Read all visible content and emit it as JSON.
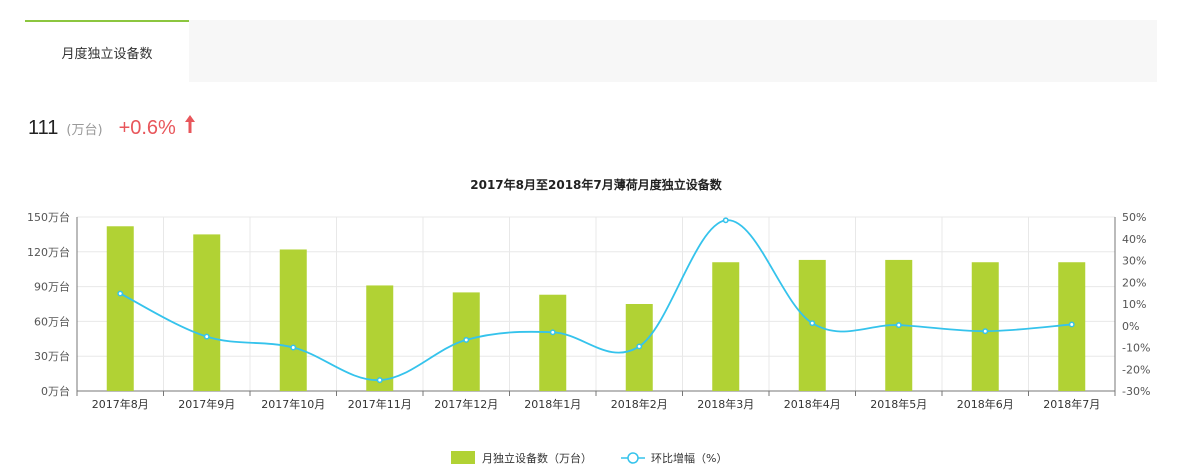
{
  "tabs": [
    {
      "label": "月度独立设备数"
    }
  ],
  "summary": {
    "value": "111",
    "unit": "(万台)",
    "change": "+0.6%"
  },
  "colors": {
    "bar": "#b1d234",
    "line": "#35c3ec",
    "tab_accent": "#8cc63f",
    "change": "#e8565b"
  },
  "chart_data": {
    "type": "bar",
    "title": "2017年8月至2018年7月薄荷月度独立设备数",
    "categories": [
      "2017年8月",
      "2017年9月",
      "2017年10月",
      "2017年11月",
      "2017年12月",
      "2018年1月",
      "2018年2月",
      "2018年3月",
      "2018年4月",
      "2018年5月",
      "2018年6月",
      "2018年7月"
    ],
    "y_left_ticks": [
      "0万台",
      "30万台",
      "60万台",
      "90万台",
      "120万台",
      "150万台"
    ],
    "y_right_ticks": [
      "-30%",
      "-20%",
      "-10%",
      "0%",
      "10%",
      "20%",
      "30%",
      "40%",
      "50%"
    ],
    "ylim_left": [
      0,
      150
    ],
    "ylim_right": [
      -30,
      50
    ],
    "grid": true,
    "legend_position": "bottom",
    "series": [
      {
        "name": "月独立设备数（万台）",
        "type": "bar",
        "axis": "left",
        "values": [
          142,
          135,
          122,
          91,
          85,
          83,
          75,
          111,
          113,
          113,
          111,
          111
        ]
      },
      {
        "name": "环比增幅（%）",
        "type": "line",
        "axis": "right",
        "values": [
          14.8,
          -5.0,
          -10.0,
          -25.0,
          -6.5,
          -3.0,
          -9.5,
          48.5,
          1.2,
          0.3,
          -2.5,
          0.6
        ]
      }
    ]
  }
}
